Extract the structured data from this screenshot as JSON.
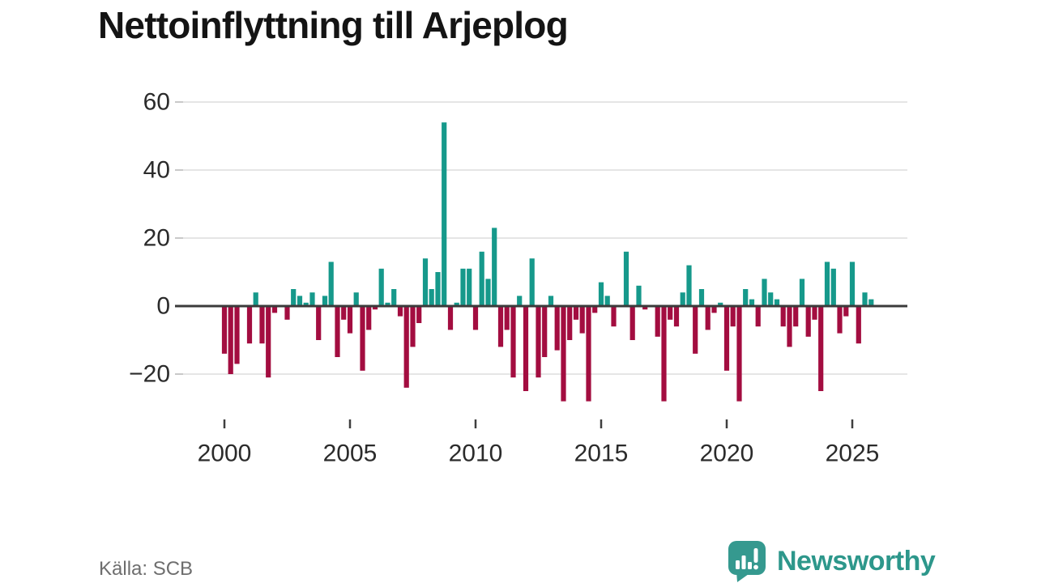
{
  "title": "Nettoinflyttning till Arjeplog",
  "source": "Källa: SCB",
  "branding": {
    "name": "Newsworthy",
    "icon": "newsworthy-speech-bubble-chart-icon",
    "color": "#2d978b",
    "icon_color": "#35998f"
  },
  "colors": {
    "positive": "#16998b",
    "negative": "#a30d40",
    "axis": "#3b3b3b",
    "grid": "#e5e5e5",
    "tick": "#3f3f3f",
    "tick_minor": "#c9c9c9",
    "label": "#2b2b2b"
  },
  "chart_data": {
    "type": "bar",
    "title": "Nettoinflyttning till Arjeplog",
    "frequency": "quarterly",
    "start_period": "2000-Q1",
    "end_period": "2025-Q4",
    "xlabel": "",
    "ylabel": "",
    "ylim": [
      -30,
      64
    ],
    "grid": true,
    "yticks": [
      60,
      40,
      20,
      0,
      -20
    ],
    "xticks": [
      2000,
      2005,
      2010,
      2015,
      2020,
      2025
    ],
    "values": [
      -14,
      -20,
      -17,
      0,
      -11,
      4,
      -11,
      -21,
      -2,
      0,
      -4,
      5,
      3,
      1,
      4,
      -10,
      3,
      13,
      -15,
      -4,
      -8,
      4,
      -19,
      -7,
      -1,
      11,
      1,
      5,
      -3,
      -24,
      -12,
      -5,
      14,
      5,
      10,
      54,
      -7,
      1,
      11,
      11,
      -7,
      16,
      8,
      23,
      -12,
      -7,
      -21,
      3,
      -25,
      14,
      -21,
      -15,
      3,
      -13,
      -28,
      -10,
      -4,
      -8,
      -28,
      -2,
      7,
      3,
      -6,
      0,
      16,
      -10,
      6,
      -1,
      0,
      -9,
      -28,
      -4,
      -6,
      4,
      12,
      -14,
      5,
      -7,
      -2,
      1,
      -19,
      -6,
      -28,
      5,
      2,
      -6,
      8,
      4,
      2,
      -6,
      -12,
      -6,
      8,
      -9,
      -4,
      -25,
      13,
      11,
      -8,
      -3,
      13,
      -11,
      4,
      2
    ]
  }
}
